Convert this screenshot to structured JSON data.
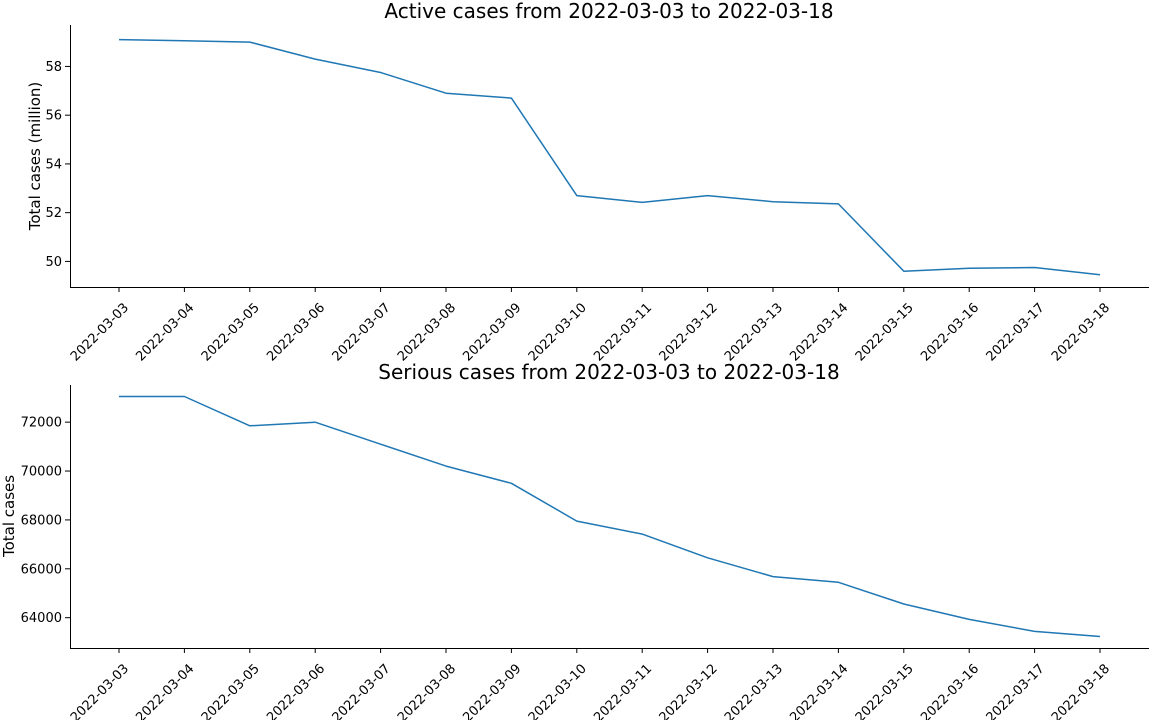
{
  "chart_data": [
    {
      "type": "line",
      "title": "Active cases from 2022-03-03 to 2022-03-18",
      "xlabel": "",
      "ylabel": "Total cases (million)",
      "categories": [
        "2022-03-03",
        "2022-03-04",
        "2022-03-05",
        "2022-03-06",
        "2022-03-07",
        "2022-03-08",
        "2022-03-09",
        "2022-03-10",
        "2022-03-11",
        "2022-03-12",
        "2022-03-13",
        "2022-03-14",
        "2022-03-15",
        "2022-03-16",
        "2022-03-17",
        "2022-03-18"
      ],
      "values": [
        59.1,
        59.05,
        59.0,
        58.3,
        57.75,
        56.9,
        56.7,
        52.7,
        52.42,
        52.7,
        52.45,
        52.36,
        49.6,
        49.72,
        49.75,
        49.45
      ],
      "ylim": [
        48.95,
        59.7
      ],
      "yticks": [
        50,
        52,
        54,
        56,
        58
      ],
      "ytick_labels": [
        "50",
        "52",
        "54",
        "56",
        "58"
      ],
      "color": "#1f77b4",
      "grid": false,
      "legend": false
    },
    {
      "type": "line",
      "title": "Serious cases from 2022-03-03 to 2022-03-18",
      "xlabel": "",
      "ylabel": "Total cases",
      "categories": [
        "2022-03-03",
        "2022-03-04",
        "2022-03-05",
        "2022-03-06",
        "2022-03-07",
        "2022-03-08",
        "2022-03-09",
        "2022-03-10",
        "2022-03-11",
        "2022-03-12",
        "2022-03-13",
        "2022-03-14",
        "2022-03-15",
        "2022-03-16",
        "2022-03-17",
        "2022-03-18"
      ],
      "values": [
        73050,
        73050,
        71850,
        72000,
        71100,
        70200,
        69500,
        67950,
        67420,
        66450,
        65680,
        65450,
        64560,
        63930,
        63440,
        63230
      ],
      "ylim": [
        62760,
        73520
      ],
      "yticks": [
        64000,
        66000,
        68000,
        70000,
        72000
      ],
      "ytick_labels": [
        "64000",
        "66000",
        "68000",
        "70000",
        "72000"
      ],
      "color": "#1f77b4",
      "grid": false,
      "legend": false
    }
  ]
}
